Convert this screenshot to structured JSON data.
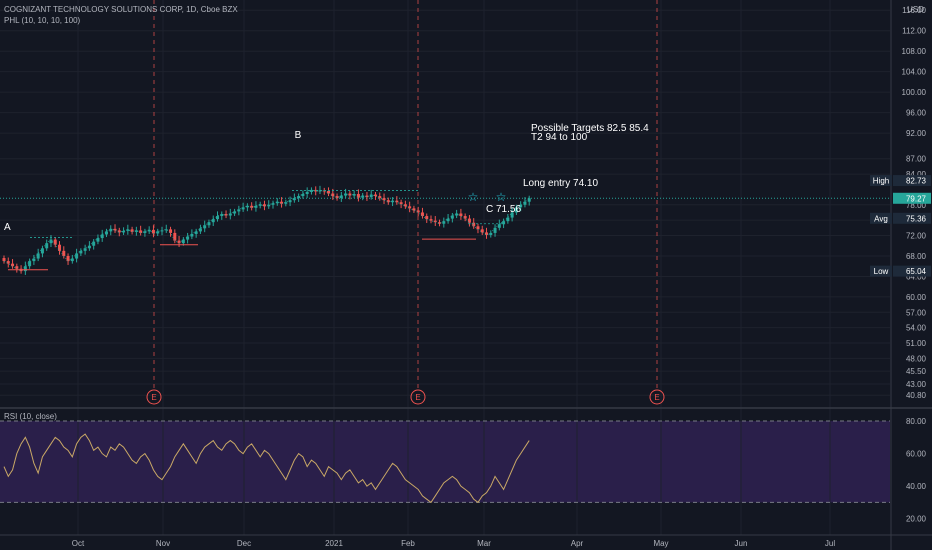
{
  "header": {
    "title": "COGNIZANT TECHNOLOGY SOLUTIONS CORP, 1D, Cboe BZX",
    "indicator": "PHL (10, 10, 10, 100)",
    "currency": "USD"
  },
  "rsi": {
    "label": "RSI (10, close)",
    "ticks": [
      "80.00",
      "60.00",
      "40.00",
      "20.00"
    ]
  },
  "annotations": {
    "point_a": "A",
    "point_b": "B",
    "point_c": "C 71.56",
    "targets": "Possible Targets  82.5  85.4",
    "targets2": "T2  94 to 100",
    "long_entry": "Long entry  74.10",
    "earnings": "E"
  },
  "badges": {
    "high_label": "High",
    "high_value": "82.73",
    "last_value": "79.27",
    "avg_label": "Avg",
    "avg_value": "75.36",
    "low_label": "Low",
    "low_value": "65.04"
  },
  "colors": {
    "background": "#131722",
    "up": "#26a69a",
    "down": "#ef5350",
    "rsi_line": "#c9a866",
    "rsi_band": "#2a1f4a",
    "earnings": "#ef5350",
    "last_price": "#26a69a"
  },
  "chart_data": {
    "type": "candlestick",
    "title": "COGNIZANT TECHNOLOGY SOLUTIONS CORP, 1D, Cboe BZX",
    "x_ticks": [
      "Oct",
      "Nov",
      "Dec",
      "2021",
      "Feb",
      "Mar",
      "Apr",
      "May",
      "Jun",
      "Jul"
    ],
    "y_ticks": [
      "116.00",
      "112.00",
      "108.00",
      "104.00",
      "100.00",
      "96.00",
      "92.00",
      "87.00",
      "84.00",
      "78.00",
      "75.00",
      "72.00",
      "68.00",
      "64.00",
      "60.00",
      "57.00",
      "54.00",
      "51.00",
      "48.00",
      "45.50",
      "43.00",
      "40.80"
    ],
    "ylim": [
      38.5,
      118
    ],
    "close_series": [
      67.0,
      66.5,
      66.0,
      65.5,
      65.04,
      66.0,
      67.0,
      67.5,
      68.5,
      69.5,
      70.5,
      71.2,
      70.2,
      69.0,
      68.0,
      67.0,
      67.5,
      68.5,
      69.0,
      69.5,
      70.0,
      70.8,
      71.5,
      72.2,
      72.8,
      73.3,
      73.0,
      72.6,
      72.9,
      73.2,
      72.7,
      73.0,
      72.5,
      72.8,
      73.1,
      72.4,
      72.8,
      73.0,
      73.2,
      72.5,
      71.0,
      70.5,
      71.2,
      71.8,
      72.3,
      72.8,
      73.4,
      74.0,
      74.6,
      75.2,
      75.8,
      76.2,
      75.9,
      76.3,
      76.7,
      77.1,
      77.5,
      77.8,
      77.4,
      77.8,
      78.1,
      77.7,
      78.0,
      78.3,
      78.6,
      78.2,
      78.5,
      78.9,
      79.3,
      79.7,
      80.1,
      80.5,
      80.9,
      80.6,
      80.8,
      80.7,
      80.2,
      79.7,
      79.3,
      79.8,
      80.2,
      79.8,
      80.1,
      79.4,
      79.8,
      79.5,
      80.0,
      79.7,
      79.3,
      78.9,
      78.5,
      78.8,
      78.5,
      78.1,
      77.7,
      77.3,
      76.9,
      76.5,
      75.8,
      75.2,
      74.9,
      74.6,
      74.3,
      74.8,
      75.3,
      75.9,
      76.3,
      75.8,
      75.3,
      74.5,
      73.8,
      73.2,
      72.6,
      72.1,
      72.5,
      73.5,
      74.2,
      74.8,
      75.5,
      76.5,
      77.5,
      78.0,
      78.6,
      79.27
    ],
    "annotations": {
      "targets": [
        82.5,
        85.4
      ],
      "target2_range": [
        94,
        100
      ],
      "long_entry": 74.1,
      "point_c": 71.56,
      "high": 82.73,
      "avg": 75.36,
      "low": 65.04,
      "last": 79.27
    },
    "rsi": {
      "ylim": [
        10,
        88
      ],
      "band": [
        30,
        80
      ],
      "values": [
        52,
        46,
        50,
        60,
        66,
        70,
        64,
        54,
        48,
        58,
        62,
        66,
        70,
        68,
        64,
        62,
        58,
        66,
        70,
        72,
        68,
        62,
        64,
        60,
        58,
        64,
        62,
        66,
        64,
        60,
        56,
        54,
        58,
        60,
        56,
        50,
        46,
        44,
        48,
        52,
        58,
        62,
        66,
        62,
        58,
        54,
        60,
        64,
        66,
        68,
        64,
        62,
        66,
        68,
        66,
        62,
        60,
        64,
        66,
        62,
        58,
        62,
        60,
        56,
        52,
        48,
        44,
        50,
        56,
        60,
        58,
        52,
        56,
        54,
        50,
        46,
        52,
        50,
        48,
        44,
        48,
        50,
        46,
        42,
        44,
        40,
        42,
        38,
        42,
        46,
        50,
        54,
        52,
        48,
        44,
        42,
        40,
        38,
        34,
        32,
        30,
        34,
        38,
        42,
        44,
        46,
        44,
        40,
        38,
        36,
        32,
        30,
        34,
        36,
        40,
        46,
        42,
        38,
        44,
        50,
        56,
        60,
        64,
        68
      ]
    }
  }
}
